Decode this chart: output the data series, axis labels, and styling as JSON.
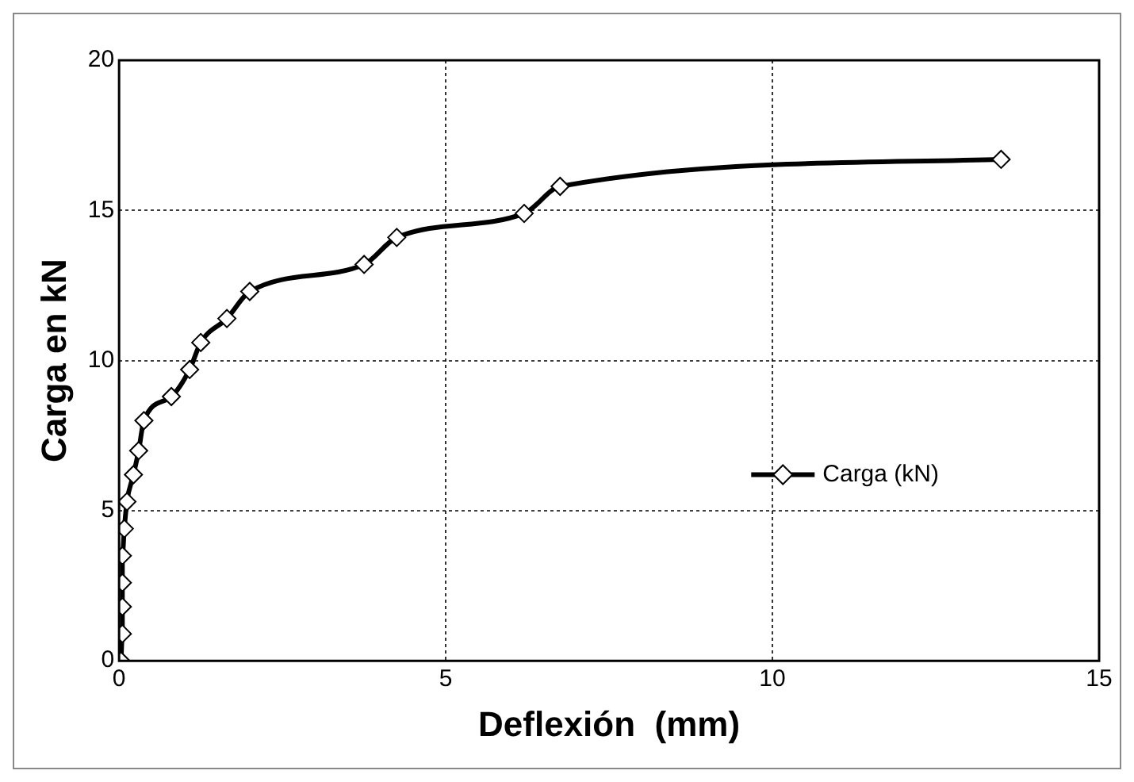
{
  "chart_data": {
    "type": "line",
    "xlabel": "Deflexión  (mm)",
    "ylabel": "Carga en kN",
    "x": [
      0.03,
      0.05,
      0.05,
      0.05,
      0.05,
      0.08,
      0.12,
      0.22,
      0.3,
      0.38,
      0.8,
      1.08,
      1.25,
      1.65,
      2.0,
      3.75,
      4.25,
      6.2,
      6.75,
      13.5
    ],
    "series": [
      {
        "name": "Carga (kN)",
        "color": "#000000",
        "values": [
          0,
          0.9,
          1.8,
          2.6,
          3.5,
          4.4,
          5.3,
          6.2,
          7.0,
          8.0,
          8.8,
          9.7,
          10.6,
          11.4,
          12.3,
          13.2,
          14.1,
          14.9,
          15.8,
          16.7
        ]
      }
    ],
    "xlim": [
      0,
      15
    ],
    "xticks": [
      0,
      5,
      10,
      15
    ],
    "ylim": [
      0,
      20
    ],
    "yticks": [
      0,
      5,
      10,
      15,
      20
    ],
    "grid": true,
    "legend": "right",
    "marker": "diamond",
    "line_style": "solid"
  }
}
